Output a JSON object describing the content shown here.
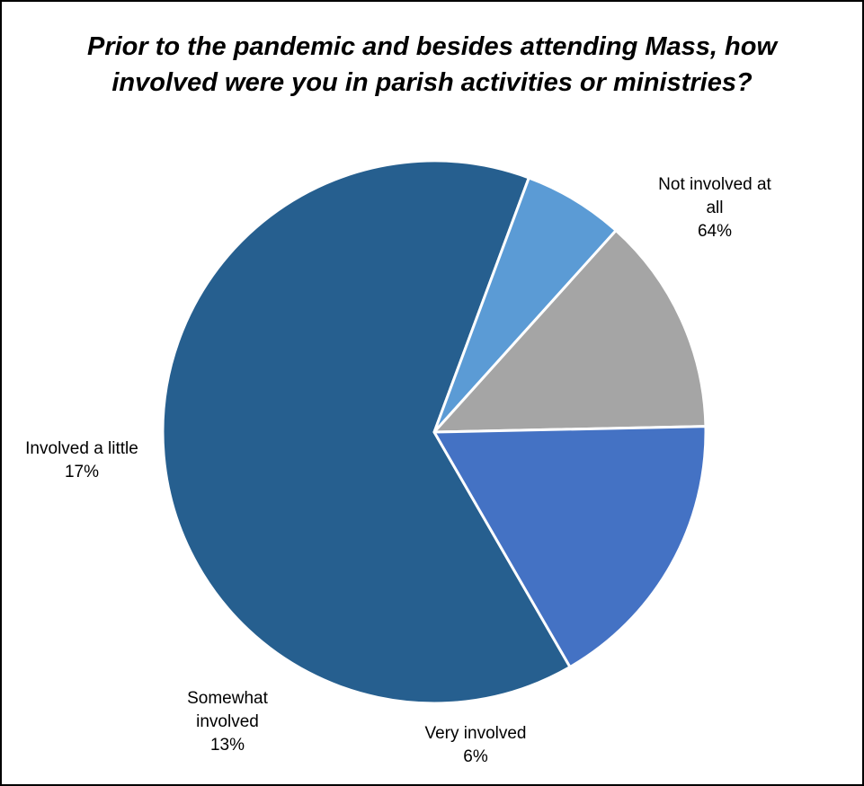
{
  "chart_data": {
    "type": "pie",
    "title_lines": [
      "Prior to the pandemic and besides attending Mass, how",
      "involved were you in parish activities or ministries?"
    ],
    "slices": [
      {
        "name_lines": [
          "Not involved at",
          "all"
        ],
        "value_label": "64%",
        "value": 64,
        "color": "#265F8F"
      },
      {
        "name_lines": [
          "Very involved"
        ],
        "value_label": "6%",
        "value": 6,
        "color": "#5B9BD5"
      },
      {
        "name_lines": [
          "Somewhat",
          "involved"
        ],
        "value_label": "13%",
        "value": 13,
        "color": "#A5A5A5"
      },
      {
        "name_lines": [
          "Involved a little"
        ],
        "value_label": "17%",
        "value": 17,
        "color": "#4472C4"
      }
    ],
    "legend": "none",
    "labels": "outside"
  }
}
